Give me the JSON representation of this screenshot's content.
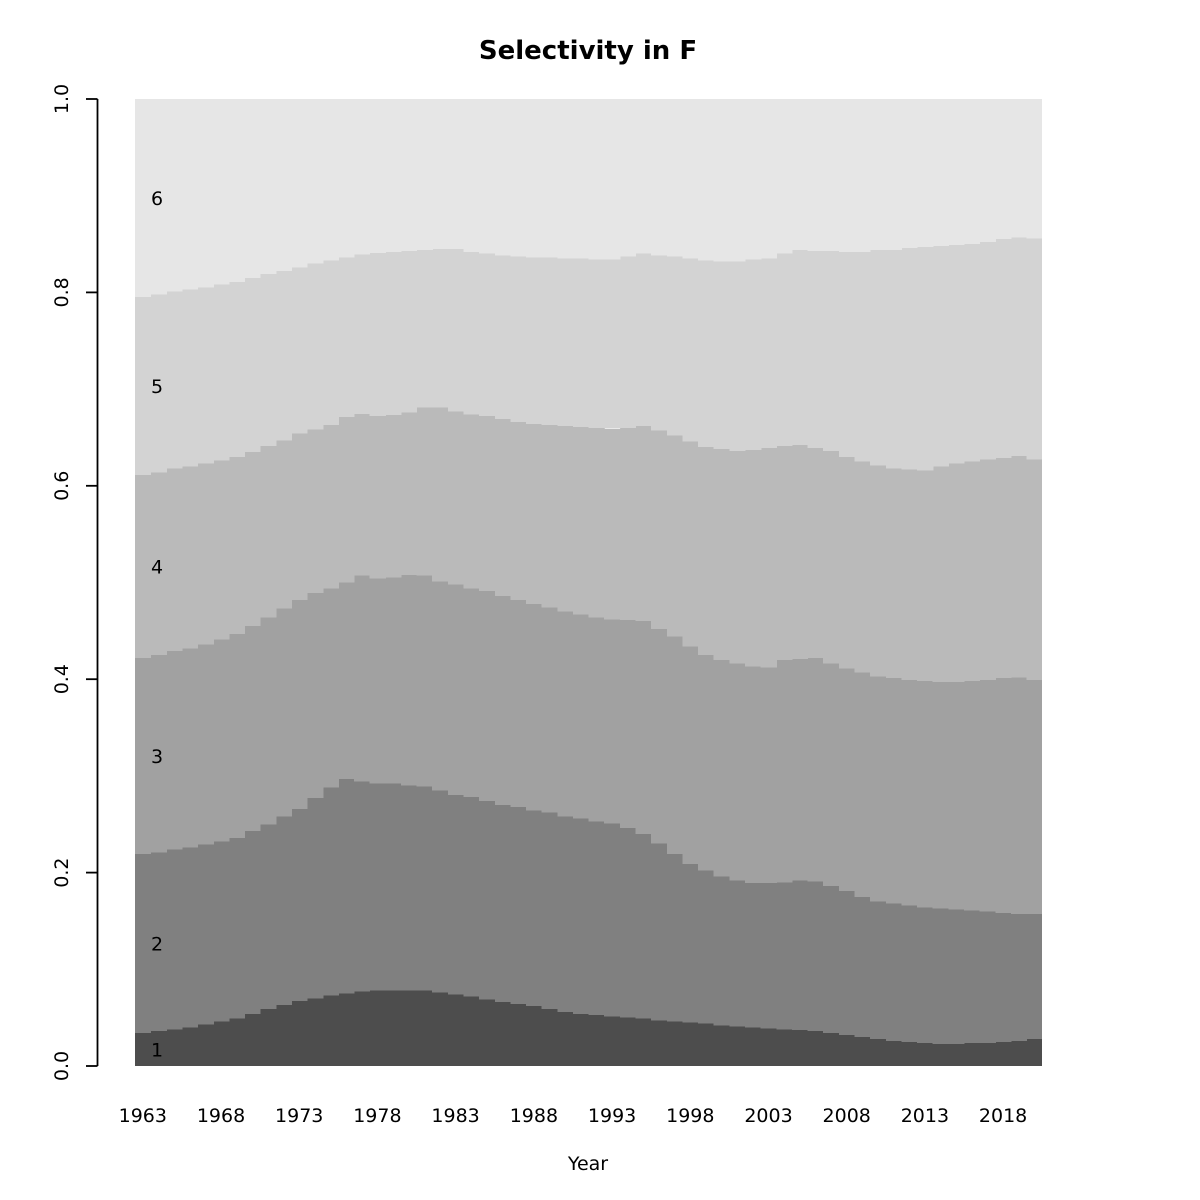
{
  "title": "Selectivity in F",
  "chart_data": {
    "type": "area",
    "stacked": true,
    "normalized": true,
    "title": "Selectivity in F",
    "xlabel": "Year",
    "ylabel": "",
    "ylim": [
      0,
      1
    ],
    "grid": false,
    "legend_position": "labels drawn inside bands at left edge",
    "note": "Stacked proportion-at-age (classes 1-6) by year; cumulative_top is the stacked upper boundary of each band read from the y axis; band height = cumulative_top minus the band below.",
    "x": [
      1963,
      1964,
      1965,
      1966,
      1967,
      1968,
      1969,
      1970,
      1971,
      1972,
      1973,
      1974,
      1975,
      1976,
      1977,
      1978,
      1979,
      1980,
      1981,
      1982,
      1983,
      1984,
      1985,
      1986,
      1987,
      1988,
      1989,
      1990,
      1991,
      1992,
      1993,
      1994,
      1995,
      1996,
      1997,
      1998,
      1999,
      2000,
      2001,
      2002,
      2003,
      2004,
      2005,
      2006,
      2007,
      2008,
      2009,
      2010,
      2011,
      2012,
      2013,
      2014,
      2015,
      2016,
      2017,
      2018,
      2019,
      2020
    ],
    "x_tick_labels": [
      "1963",
      "1968",
      "1973",
      "1978",
      "1983",
      "1988",
      "1993",
      "1998",
      "2003",
      "2008",
      "2013",
      "2018"
    ],
    "y_tick_labels": [
      "0.0",
      "0.2",
      "0.4",
      "0.6",
      "0.8",
      "1.0"
    ],
    "bands": [
      {
        "label": "1",
        "color": "#4d4d4d",
        "cumulative_top": [
          0.034,
          0.036,
          0.038,
          0.04,
          0.043,
          0.046,
          0.049,
          0.054,
          0.059,
          0.063,
          0.067,
          0.07,
          0.073,
          0.075,
          0.077,
          0.078,
          0.078,
          0.078,
          0.078,
          0.076,
          0.074,
          0.072,
          0.069,
          0.066,
          0.064,
          0.062,
          0.059,
          0.056,
          0.054,
          0.053,
          0.051,
          0.05,
          0.049,
          0.047,
          0.046,
          0.045,
          0.044,
          0.042,
          0.041,
          0.04,
          0.039,
          0.038,
          0.037,
          0.036,
          0.034,
          0.032,
          0.03,
          0.028,
          0.026,
          0.025,
          0.024,
          0.023,
          0.023,
          0.024,
          0.024,
          0.025,
          0.026,
          0.028
        ]
      },
      {
        "label": "2",
        "color": "#808080",
        "cumulative_top": [
          0.219,
          0.221,
          0.224,
          0.226,
          0.229,
          0.232,
          0.236,
          0.243,
          0.25,
          0.258,
          0.266,
          0.277,
          0.288,
          0.297,
          0.294,
          0.292,
          0.292,
          0.29,
          0.289,
          0.285,
          0.28,
          0.278,
          0.274,
          0.27,
          0.268,
          0.264,
          0.262,
          0.258,
          0.256,
          0.253,
          0.251,
          0.246,
          0.24,
          0.23,
          0.219,
          0.209,
          0.202,
          0.196,
          0.192,
          0.189,
          0.189,
          0.19,
          0.192,
          0.191,
          0.186,
          0.181,
          0.175,
          0.17,
          0.168,
          0.166,
          0.164,
          0.163,
          0.162,
          0.161,
          0.16,
          0.158,
          0.157,
          0.157
        ]
      },
      {
        "label": "3",
        "color": "#a1a1a1",
        "cumulative_top": [
          0.422,
          0.425,
          0.429,
          0.432,
          0.436,
          0.441,
          0.447,
          0.455,
          0.464,
          0.473,
          0.482,
          0.489,
          0.494,
          0.5,
          0.507,
          0.504,
          0.505,
          0.508,
          0.507,
          0.501,
          0.498,
          0.494,
          0.491,
          0.486,
          0.482,
          0.478,
          0.474,
          0.47,
          0.467,
          0.464,
          0.462,
          0.461,
          0.46,
          0.452,
          0.444,
          0.434,
          0.425,
          0.42,
          0.416,
          0.413,
          0.412,
          0.42,
          0.421,
          0.422,
          0.416,
          0.411,
          0.407,
          0.403,
          0.401,
          0.399,
          0.398,
          0.397,
          0.397,
          0.398,
          0.399,
          0.401,
          0.402,
          0.399
        ]
      },
      {
        "label": "4",
        "color": "#bababa",
        "cumulative_top": [
          0.611,
          0.614,
          0.618,
          0.62,
          0.623,
          0.626,
          0.63,
          0.635,
          0.641,
          0.647,
          0.654,
          0.658,
          0.663,
          0.671,
          0.674,
          0.672,
          0.673,
          0.676,
          0.681,
          0.681,
          0.677,
          0.674,
          0.672,
          0.669,
          0.666,
          0.664,
          0.663,
          0.662,
          0.661,
          0.66,
          0.659,
          0.66,
          0.662,
          0.657,
          0.652,
          0.646,
          0.64,
          0.638,
          0.636,
          0.637,
          0.639,
          0.641,
          0.642,
          0.639,
          0.636,
          0.63,
          0.625,
          0.621,
          0.618,
          0.617,
          0.616,
          0.62,
          0.623,
          0.625,
          0.627,
          0.629,
          0.631,
          0.627
        ]
      },
      {
        "label": "5",
        "color": "#d3d3d3",
        "cumulative_top": [
          0.795,
          0.798,
          0.801,
          0.803,
          0.805,
          0.808,
          0.811,
          0.815,
          0.819,
          0.822,
          0.826,
          0.83,
          0.833,
          0.836,
          0.839,
          0.841,
          0.842,
          0.843,
          0.844,
          0.845,
          0.845,
          0.842,
          0.84,
          0.838,
          0.837,
          0.836,
          0.836,
          0.835,
          0.835,
          0.834,
          0.834,
          0.837,
          0.84,
          0.838,
          0.837,
          0.835,
          0.833,
          0.832,
          0.832,
          0.834,
          0.835,
          0.84,
          0.844,
          0.843,
          0.843,
          0.842,
          0.842,
          0.844,
          0.844,
          0.846,
          0.847,
          0.848,
          0.849,
          0.85,
          0.852,
          0.855,
          0.857,
          0.856
        ]
      },
      {
        "label": "6",
        "color": "#e6e6e6",
        "cumulative_top": [
          1,
          1,
          1,
          1,
          1,
          1,
          1,
          1,
          1,
          1,
          1,
          1,
          1,
          1,
          1,
          1,
          1,
          1,
          1,
          1,
          1,
          1,
          1,
          1,
          1,
          1,
          1,
          1,
          1,
          1,
          1,
          1,
          1,
          1,
          1,
          1,
          1,
          1,
          1,
          1,
          1,
          1,
          1,
          1,
          1,
          1,
          1,
          1,
          1,
          1,
          1,
          1,
          1,
          1,
          1,
          1,
          1,
          1
        ]
      }
    ]
  }
}
